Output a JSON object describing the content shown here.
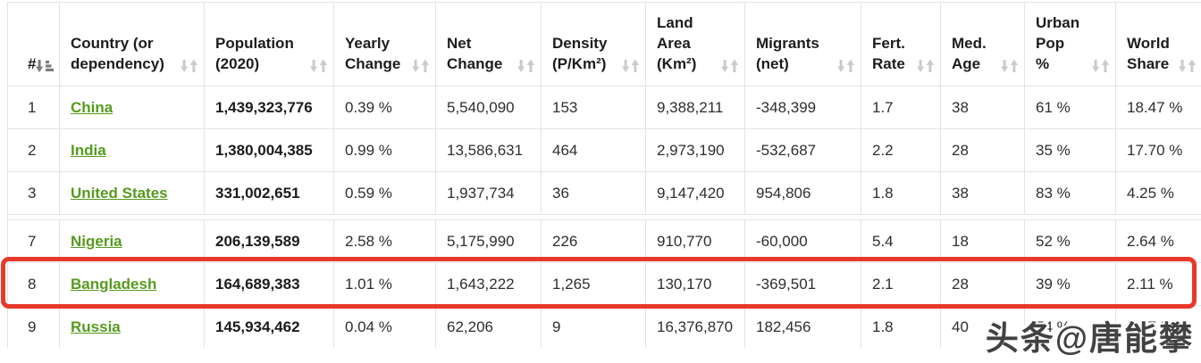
{
  "table": {
    "columns": [
      {
        "label": "#",
        "sort": "active"
      },
      {
        "label": "Country (or\ndependency)",
        "sort": "inactive"
      },
      {
        "label": "Population\n(2020)",
        "sort": "inactive"
      },
      {
        "label": "Yearly\nChange",
        "sort": "inactive"
      },
      {
        "label": "Net\nChange",
        "sort": "inactive"
      },
      {
        "label": "Density\n(P/Km²)",
        "sort": "inactive"
      },
      {
        "label": "Land\nArea\n(Km²)",
        "sort": "inactive"
      },
      {
        "label": "Migrants\n(net)",
        "sort": "inactive"
      },
      {
        "label": "Fert.\nRate",
        "sort": "inactive"
      },
      {
        "label": "Med.\nAge",
        "sort": "inactive"
      },
      {
        "label": "Urban\nPop\n%",
        "sort": "inactive"
      },
      {
        "label": "World\nShare",
        "sort": "inactive"
      }
    ],
    "rows": [
      {
        "cells": [
          "1",
          "China",
          "1,439,323,776",
          "0.39 %",
          "5,540,090",
          "153",
          "9,388,211",
          "-348,399",
          "1.7",
          "38",
          "61 %",
          "18.47 %"
        ],
        "highlighted": false
      },
      {
        "cells": [
          "2",
          "India",
          "1,380,004,385",
          "0.99 %",
          "13,586,631",
          "464",
          "2,973,190",
          "-532,687",
          "2.2",
          "28",
          "35 %",
          "17.70 %"
        ],
        "highlighted": false
      },
      {
        "cells": [
          "3",
          "United States",
          "331,002,651",
          "0.59 %",
          "1,937,734",
          "36",
          "9,147,420",
          "954,806",
          "1.8",
          "38",
          "83 %",
          "4.25 %"
        ],
        "highlighted": false
      },
      {
        "cells": [
          "7",
          "Nigeria",
          "206,139,589",
          "2.58 %",
          "5,175,990",
          "226",
          "910,770",
          "-60,000",
          "5.4",
          "18",
          "52 %",
          "2.64 %"
        ],
        "highlighted": false,
        "gap_before": true
      },
      {
        "cells": [
          "8",
          "Bangladesh",
          "164,689,383",
          "1.01 %",
          "1,643,222",
          "1,265",
          "130,170",
          "-369,501",
          "2.1",
          "28",
          "39 %",
          "2.11 %"
        ],
        "highlighted": true
      },
      {
        "cells": [
          "9",
          "Russia",
          "145,934,462",
          "0.04 %",
          "62,206",
          "9",
          "16,376,870",
          "182,456",
          "1.8",
          "40",
          "74 %",
          "1.87 %"
        ],
        "highlighted": false,
        "partially_obscured_by_watermark": true
      }
    ]
  },
  "watermark": {
    "text": "头条@唐能攀"
  },
  "colors": {
    "country_link_green": "#569a1e",
    "highlight_red": "#e8382a",
    "border_gray": "#e3e3e3",
    "sort_inactive_gray": "#cbcbcb",
    "sort_active_gray": "#7d7d7d"
  }
}
